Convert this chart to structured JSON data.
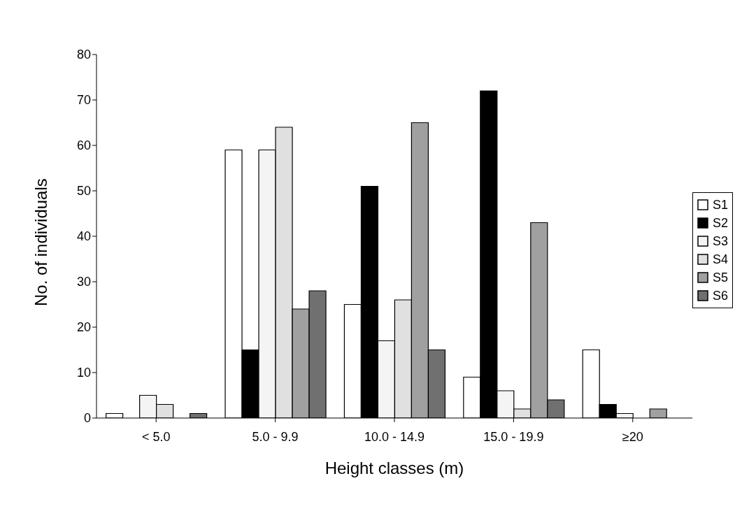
{
  "chart_data": {
    "type": "bar",
    "xlabel": "Height classes (m)",
    "ylabel": "No. of individuals",
    "categories": [
      "< 5.0",
      "5.0 - 9.9",
      "10.0 - 14.9",
      "15.0 - 19.9",
      "≥20"
    ],
    "series": [
      {
        "name": "S1",
        "color": "#ffffff",
        "values": [
          1,
          59,
          25,
          9,
          15
        ]
      },
      {
        "name": "S2",
        "color": "#000000",
        "values": [
          0,
          15,
          51,
          72,
          3
        ]
      },
      {
        "name": "S3",
        "color": "#f4f4f4",
        "values": [
          5,
          59,
          17,
          6,
          1
        ]
      },
      {
        "name": "S4",
        "color": "#e0e0e0",
        "values": [
          3,
          64,
          26,
          2,
          0
        ]
      },
      {
        "name": "S5",
        "color": "#a0a0a0",
        "values": [
          0,
          24,
          65,
          43,
          2
        ]
      },
      {
        "name": "S6",
        "color": "#707070",
        "values": [
          1,
          28,
          15,
          4,
          0
        ]
      }
    ],
    "ylim": [
      0,
      80
    ],
    "yticks": [
      0,
      10,
      20,
      30,
      40,
      50,
      60,
      70,
      80
    ],
    "grid": false,
    "legend": "right"
  }
}
